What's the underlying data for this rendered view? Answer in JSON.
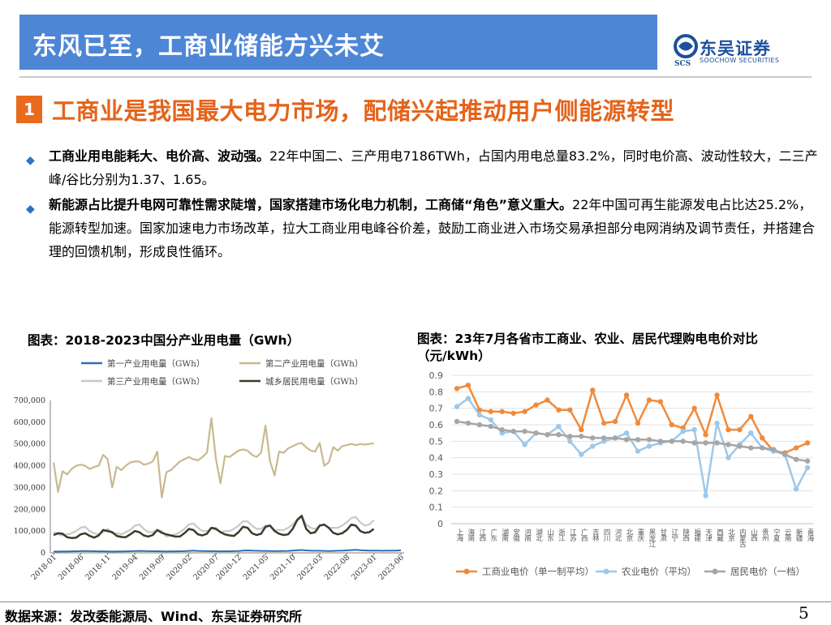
{
  "header": {
    "title": "东风已至，工商业储能方兴未艾",
    "logo_name": "东吴证券",
    "logo_sub": "SOOCHOW SECURITIES",
    "logo_mark": "SCS"
  },
  "section": {
    "number": "1",
    "title": "工商业是我国最大电力市场，配储兴起推动用户侧能源转型"
  },
  "bullets": [
    {
      "bold": "工商业用电能耗大、电价高、波动强。",
      "text": "22年中国二、三产用电7186TWh，占国内用电总量83.2%，同时电价高、波动性较大，二三产峰/谷比分别为1.37、1.65。"
    },
    {
      "bold": "新能源占比提升电网可靠性需求陡增，国家搭建市场化电力机制，工商储“角色”意义重大。",
      "text": "22年中国可再生能源发电占比达25.2%，能源转型加速。国家加速电力市场改革，拉大工商业用电峰谷价差，鼓励工商业进入市场交易承担部分电网消纳及调节责任，并搭建合理的回馈机制，形成良性循环。"
    }
  ],
  "chart_data": [
    {
      "type": "line",
      "title": "图表：2018-2023中国分产业用电量（GWh）",
      "xlabel": "",
      "ylabel": "",
      "ylim": [
        0,
        700000
      ],
      "yticks": [
        0,
        100000,
        200000,
        300000,
        400000,
        500000,
        600000,
        700000
      ],
      "ytick_labels": [
        "0",
        "100,000",
        "200,000",
        "300,000",
        "400,000",
        "500,000",
        "600,000",
        "700,000"
      ],
      "xtick_labels": [
        "2018-01",
        "2018-06",
        "2018-11",
        "2019-04",
        "2019-09",
        "2020-02",
        "2020-07",
        "2020-12",
        "2021-05",
        "2021-10",
        "2022-03",
        "2022-08",
        "2023-01",
        "2023-06"
      ],
      "legend": "top",
      "grid": false,
      "series": [
        {
          "name": "第一产业用电量（GWh）",
          "color": "#2e6fb7",
          "values": [
            6000,
            6000,
            6500,
            6500,
            7000,
            7500,
            8000,
            8500,
            8000,
            7500,
            7000,
            7000,
            6500,
            6000,
            6500,
            6500,
            7000,
            7500,
            8500,
            9000,
            8500,
            8000,
            7500,
            7500,
            7000,
            6500,
            7000,
            7000,
            7500,
            8000,
            9000,
            10000,
            9000,
            8500,
            8000,
            8000,
            7500,
            7000,
            7500,
            7500,
            8000,
            8500,
            10000,
            11000,
            10000,
            9500,
            9000,
            9000,
            8500,
            8000,
            8500,
            8500,
            9000,
            10000,
            11500,
            13000,
            11000,
            10000,
            9500,
            9500,
            9000,
            8500,
            9000,
            9500,
            10000,
            11000,
            12500,
            14000,
            12000,
            11000,
            10500,
            10500,
            10000,
            9500,
            10000,
            10000,
            10500,
            11500
          ]
        },
        {
          "name": "第二产业用电量（GWh）",
          "color": "#c9b98f",
          "values": [
            415000,
            280000,
            375000,
            360000,
            385000,
            400000,
            405000,
            400000,
            385000,
            395000,
            400000,
            450000,
            430000,
            300000,
            395000,
            380000,
            400000,
            415000,
            420000,
            420000,
            405000,
            410000,
            420000,
            465000,
            255000,
            370000,
            380000,
            400000,
            420000,
            430000,
            440000,
            430000,
            425000,
            440000,
            460000,
            618000,
            430000,
            320000,
            445000,
            440000,
            455000,
            470000,
            475000,
            470000,
            450000,
            440000,
            460000,
            585000,
            420000,
            355000,
            465000,
            460000,
            480000,
            490000,
            500000,
            505000,
            485000,
            470000,
            465000,
            505000,
            400000,
            415000,
            485000,
            470000,
            490000,
            495000,
            500000,
            495000,
            500000,
            497000,
            500000,
            503000
          ]
        },
        {
          "name": "第三产业用电量（GWh）",
          "color": "#c8c8c8",
          "values": [
            95000,
            85000,
            80000,
            85000,
            90000,
            100000,
            115000,
            120000,
            100000,
            90000,
            85000,
            95000,
            110000,
            90000,
            90000,
            85000,
            95000,
            105000,
            125000,
            130000,
            110000,
            95000,
            95000,
            105000,
            100000,
            75000,
            80000,
            85000,
            95000,
            110000,
            130000,
            135000,
            115000,
            100000,
            100000,
            115000,
            115000,
            95000,
            100000,
            100000,
            110000,
            125000,
            145000,
            145000,
            125000,
            110000,
            110000,
            125000,
            125000,
            105000,
            105000,
            105000,
            115000,
            130000,
            155000,
            170000,
            130000,
            115000,
            110000,
            125000,
            130000,
            115000,
            115000,
            115000,
            125000,
            140000,
            160000,
            165000,
            140000,
            125000,
            130000,
            150000
          ]
        },
        {
          "name": "城乡居民用电量（GWh）",
          "color": "#3f3a2c",
          "values": [
            82000,
            90000,
            88000,
            72000,
            68000,
            70000,
            85000,
            90000,
            78000,
            70000,
            80000,
            105000,
            100000,
            95000,
            78000,
            73000,
            72000,
            85000,
            100000,
            95000,
            80000,
            75000,
            82000,
            105000,
            92000,
            85000,
            80000,
            75000,
            75000,
            90000,
            110000,
            105000,
            85000,
            80000,
            88000,
            115000,
            110000,
            95000,
            85000,
            80000,
            78000,
            95000,
            120000,
            115000,
            90000,
            82000,
            88000,
            120000,
            125000,
            100000,
            88000,
            82000,
            85000,
            110000,
            150000,
            170000,
            110000,
            90000,
            95000,
            125000,
            130000,
            115000,
            92000,
            85000,
            90000,
            105000,
            130000,
            125000,
            100000,
            92000,
            95000,
            110000
          ]
        }
      ]
    },
    {
      "type": "line",
      "title": "图表：23年7月各省市工商业、农业、居民代理购电电价对比（元/kWh）",
      "xlabel": "",
      "ylabel": "",
      "ylim": [
        0,
        0.9
      ],
      "yticks": [
        0,
        0.1,
        0.2,
        0.3,
        0.4,
        0.5,
        0.6,
        0.7,
        0.8,
        0.9
      ],
      "ytick_labels": [
        "0",
        "0.1",
        "0.2",
        "0.3",
        "0.4",
        "0.5",
        "0.6",
        "0.7",
        "0.8",
        "0.9"
      ],
      "legend": "bottom",
      "grid": true,
      "categories": [
        "上海",
        "海南",
        "江西",
        "广东",
        "湖南",
        "安徽",
        "河南",
        "湖北",
        "山东",
        "浙江",
        "江苏",
        "广西",
        "吉林",
        "四川",
        "河北",
        "北京",
        "重庆",
        "黑龙江",
        "甘肃",
        "辽宁",
        "陕西",
        "福建",
        "天津",
        "西藏",
        "北京",
        "内蒙古",
        "山西",
        "贵州",
        "宁夏",
        "云南",
        "新疆",
        "青海"
      ],
      "series": [
        {
          "name": "工商业电价（单一制平均）",
          "color": "#f08a3b",
          "values": [
            0.82,
            0.84,
            0.69,
            0.68,
            0.68,
            0.67,
            0.68,
            0.72,
            0.75,
            0.69,
            0.69,
            0.57,
            0.81,
            0.61,
            0.62,
            0.78,
            0.61,
            0.75,
            0.74,
            0.6,
            0.58,
            0.7,
            0.54,
            0.78,
            0.57,
            0.57,
            0.65,
            0.52,
            0.44,
            0.43,
            0.46,
            0.49
          ]
        },
        {
          "name": "农业电价（平均）",
          "color": "#9dc8ea",
          "values": [
            0.71,
            0.76,
            0.66,
            0.63,
            0.55,
            0.56,
            0.48,
            0.55,
            0.54,
            0.59,
            0.5,
            0.42,
            0.47,
            0.5,
            0.52,
            0.55,
            0.44,
            0.47,
            0.49,
            0.5,
            0.56,
            0.57,
            0.17,
            0.61,
            0.4,
            0.48,
            0.55,
            0.46,
            0.44,
            0.42,
            0.21,
            0.34
          ]
        },
        {
          "name": "居民电价（一档）",
          "color": "#a6a6a6",
          "values": [
            0.62,
            0.61,
            0.6,
            0.59,
            0.57,
            0.56,
            0.56,
            0.55,
            0.54,
            0.54,
            0.53,
            0.53,
            0.52,
            0.52,
            0.52,
            0.51,
            0.51,
            0.51,
            0.5,
            0.5,
            0.5,
            0.49,
            0.49,
            0.49,
            0.48,
            0.47,
            0.46,
            0.46,
            0.45,
            0.42,
            0.39,
            0.38
          ]
        }
      ]
    }
  ],
  "footer": {
    "source": "数据来源：发改委能源局、Wind、东吴证券研究所",
    "page": "5"
  }
}
